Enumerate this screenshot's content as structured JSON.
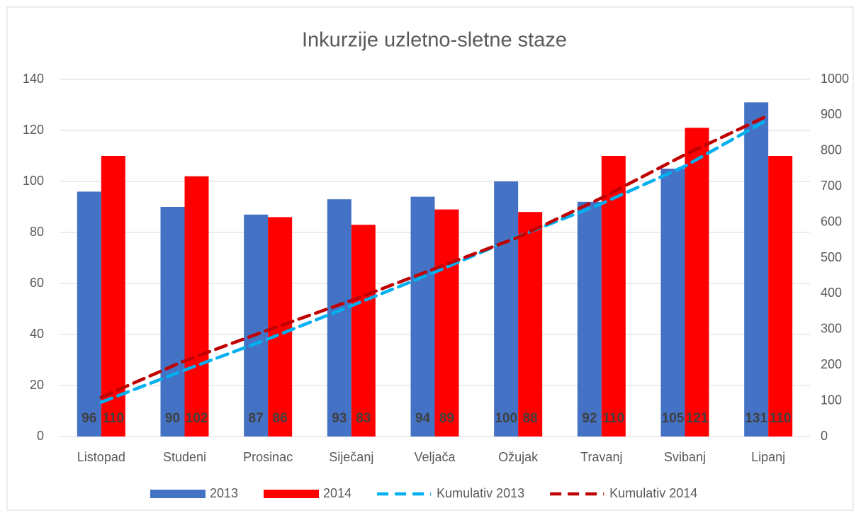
{
  "chart_data": {
    "type": "bar",
    "title": "Inkurzije uzletno-sletne staze",
    "categories": [
      "Listopad",
      "Studeni",
      "Prosinac",
      "Siječanj",
      "Veljača",
      "Ožujak",
      "Travanj",
      "Svibanj",
      "Lipanj"
    ],
    "series": [
      {
        "name": "2013",
        "type": "bar",
        "color": "#4472c4",
        "values": [
          96,
          90,
          87,
          93,
          94,
          100,
          92,
          105,
          131
        ]
      },
      {
        "name": "2014",
        "type": "bar",
        "color": "#ff0000",
        "values": [
          110,
          102,
          86,
          83,
          89,
          88,
          110,
          121,
          110
        ]
      },
      {
        "name": "Kumulativ 2013",
        "type": "line",
        "axis": "y2",
        "color": "#00b0f0",
        "values": [
          96,
          186,
          273,
          366,
          460,
          560,
          652,
          757,
          888
        ]
      },
      {
        "name": "Kumulativ 2014",
        "type": "line",
        "axis": "y2",
        "color": "#c00000",
        "values": [
          110,
          212,
          298,
          381,
          470,
          558,
          668,
          789,
          899
        ]
      }
    ],
    "ylim": [
      0,
      140
    ],
    "yticks": [
      0,
      20,
      40,
      60,
      80,
      100,
      120,
      140
    ],
    "y2lim": [
      0,
      1000
    ],
    "y2ticks": [
      0,
      100,
      200,
      300,
      400,
      500,
      600,
      700,
      800,
      900,
      1000
    ],
    "grid": true,
    "legend": "bottom"
  }
}
